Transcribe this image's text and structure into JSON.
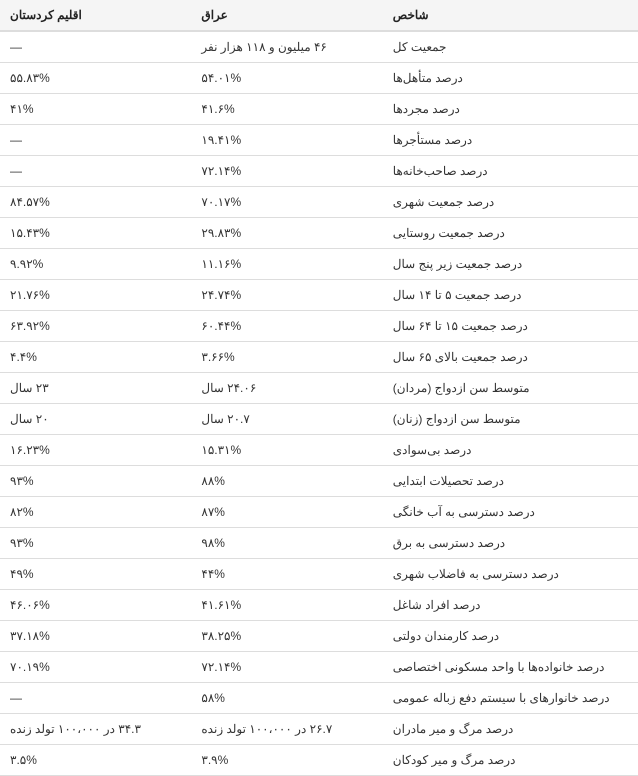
{
  "table": {
    "header_bg": "#f5f5f5",
    "border_color": "#dddddd",
    "text_color": "#333333",
    "font_size": 12,
    "columns": [
      {
        "label": "اقلیم کردستان",
        "width": "30%",
        "align": "left"
      },
      {
        "label": "عراق",
        "width": "30%",
        "align": "left"
      },
      {
        "label": "شاخص",
        "width": "40%",
        "align": "left"
      }
    ],
    "rows": [
      {
        "kurdistan": "—",
        "iraq": "۴۶ میلیون و ۱۱۸ هزار نفر",
        "indicator": "جمعیت کل"
      },
      {
        "kurdistan": "۵۵.۸۳%",
        "iraq": "۵۴.۰۱%",
        "indicator": "درصد متأهل‌ها"
      },
      {
        "kurdistan": "۴۱%",
        "iraq": "۴۱.۶%",
        "indicator": "درصد مجردها"
      },
      {
        "kurdistan": "—",
        "iraq": "۱۹.۴۱%",
        "indicator": "درصد مستأجرها"
      },
      {
        "kurdistan": "—",
        "iraq": "۷۲.۱۴%",
        "indicator": "درصد صاحب‌خانه‌ها"
      },
      {
        "kurdistan": "۸۴.۵۷%",
        "iraq": "۷۰.۱۷%",
        "indicator": "درصد جمعیت شهری"
      },
      {
        "kurdistan": "۱۵.۴۳%",
        "iraq": "۲۹.۸۳%",
        "indicator": "درصد جمعیت روستایی"
      },
      {
        "kurdistan": "۹.۹۲%",
        "iraq": "۱۱.۱۶%",
        "indicator": "درصد جمعیت زیر پنج سال"
      },
      {
        "kurdistan": "۲۱.۷۶%",
        "iraq": "۲۴.۷۴%",
        "indicator": "درصد جمعیت ۵ تا ۱۴ سال"
      },
      {
        "kurdistan": "۶۳.۹۲%",
        "iraq": "۶۰.۴۴%",
        "indicator": "درصد جمعیت ۱۵ تا ۶۴ سال"
      },
      {
        "kurdistan": "۴.۴%",
        "iraq": "۳.۶۶%",
        "indicator": "درصد جمعیت بالای ۶۵ سال"
      },
      {
        "kurdistan": "۲۳ سال",
        "iraq": "۲۴.۰۶ سال",
        "indicator": "متوسط سن ازدواج (مردان)"
      },
      {
        "kurdistan": "۲۰ سال",
        "iraq": "۲۰.۷ سال",
        "indicator": "متوسط سن ازدواج (زنان)"
      },
      {
        "kurdistan": "۱۶.۲۳%",
        "iraq": "۱۵.۳۱%",
        "indicator": "درصد بی‌سوادی"
      },
      {
        "kurdistan": "۹۳%",
        "iraq": "۸۸%",
        "indicator": "درصد تحصیلات ابتدایی"
      },
      {
        "kurdistan": "۸۲%",
        "iraq": "۸۷%",
        "indicator": "درصد دسترسی به آب خانگی"
      },
      {
        "kurdistan": "۹۳%",
        "iraq": "۹۸%",
        "indicator": "درصد دسترسی به برق"
      },
      {
        "kurdistan": "۴۹%",
        "iraq": "۴۴%",
        "indicator": "درصد دسترسی به فاضلاب شهری"
      },
      {
        "kurdistan": "۴۶.۰۶%",
        "iraq": "۴۱.۶۱%",
        "indicator": "درصد افراد شاغل"
      },
      {
        "kurdistan": "۳۷.۱۸%",
        "iraq": "۳۸.۲۵%",
        "indicator": "درصد کارمندان دولتی"
      },
      {
        "kurdistan": "۷۰.۱۹%",
        "iraq": "۷۲.۱۴%",
        "indicator": "درصد خانواده‌ها با واحد مسکونی اختصاصی"
      },
      {
        "kurdistan": "—",
        "iraq": "۵۸%",
        "indicator": "درصد خانوارهای با سیستم دفع زباله عمومی"
      },
      {
        "kurdistan": "۳۴.۳ در ۱۰۰،۰۰۰ تولد زنده",
        "iraq": "۲۶.۷ در ۱۰۰،۰۰۰ تولد زنده",
        "indicator": "درصد مرگ و میر مادران"
      },
      {
        "kurdistan": "۳.۵%",
        "iraq": "۳.۹%",
        "indicator": "درصد مرگ و میر کودکان"
      }
    ]
  }
}
